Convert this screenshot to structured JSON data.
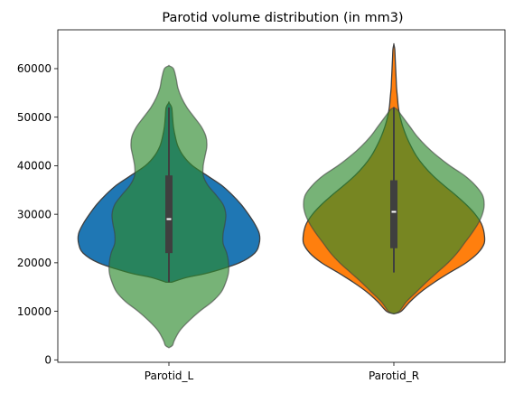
{
  "chart_data": {
    "type": "violin",
    "title": "Parotid volume distribution (in mm3)",
    "xlabel": "",
    "ylabel": "",
    "categories": [
      "Parotid_L",
      "Parotid_R"
    ],
    "ylim": [
      -500,
      68000
    ],
    "yticks": [
      0,
      10000,
      20000,
      30000,
      40000,
      50000,
      60000
    ],
    "ytick_labels": [
      "0",
      "10000",
      "20000",
      "30000",
      "40000",
      "50000",
      "60000"
    ],
    "grid": false,
    "violin_layers": [
      {
        "category": "Parotid_L",
        "layer": "base",
        "color": "#1f77b4",
        "alpha": 1.0,
        "profile": [
          [
            16000,
            0.03
          ],
          [
            17000,
            0.2
          ],
          [
            18000,
            0.45
          ],
          [
            20000,
            0.78
          ],
          [
            22000,
            0.95
          ],
          [
            24000,
            1.0
          ],
          [
            26000,
            1.0
          ],
          [
            28000,
            0.95
          ],
          [
            30000,
            0.88
          ],
          [
            32000,
            0.8
          ],
          [
            34000,
            0.7
          ],
          [
            36000,
            0.58
          ],
          [
            38000,
            0.42
          ],
          [
            40000,
            0.26
          ],
          [
            42000,
            0.16
          ],
          [
            44000,
            0.1
          ],
          [
            46000,
            0.07
          ],
          [
            48000,
            0.05
          ],
          [
            50000,
            0.04
          ],
          [
            52000,
            0.03
          ],
          [
            53000,
            0.0
          ]
        ]
      },
      {
        "category": "Parotid_L",
        "layer": "overlay",
        "color": "#2e8b2e",
        "alpha": 0.65,
        "profile": [
          [
            2500,
            0.0
          ],
          [
            3000,
            0.04
          ],
          [
            4000,
            0.06
          ],
          [
            6000,
            0.12
          ],
          [
            8000,
            0.22
          ],
          [
            10000,
            0.34
          ],
          [
            12000,
            0.48
          ],
          [
            14000,
            0.58
          ],
          [
            16000,
            0.63
          ],
          [
            18000,
            0.66
          ],
          [
            20000,
            0.66
          ],
          [
            22000,
            0.64
          ],
          [
            24000,
            0.6
          ],
          [
            26000,
            0.6
          ],
          [
            28000,
            0.62
          ],
          [
            30000,
            0.63
          ],
          [
            32000,
            0.6
          ],
          [
            34000,
            0.52
          ],
          [
            36000,
            0.43
          ],
          [
            38000,
            0.38
          ],
          [
            40000,
            0.38
          ],
          [
            42000,
            0.4
          ],
          [
            44000,
            0.42
          ],
          [
            46000,
            0.41
          ],
          [
            48000,
            0.36
          ],
          [
            50000,
            0.28
          ],
          [
            52000,
            0.2
          ],
          [
            54000,
            0.14
          ],
          [
            56000,
            0.1
          ],
          [
            58000,
            0.08
          ],
          [
            60000,
            0.05
          ],
          [
            60600,
            0.0
          ]
        ]
      },
      {
        "category": "Parotid_R",
        "layer": "base",
        "color": "#ff7f0e",
        "alpha": 1.0,
        "profile": [
          [
            9500,
            0.0
          ],
          [
            10000,
            0.08
          ],
          [
            12000,
            0.18
          ],
          [
            14000,
            0.3
          ],
          [
            16000,
            0.45
          ],
          [
            18000,
            0.62
          ],
          [
            20000,
            0.8
          ],
          [
            22000,
            0.93
          ],
          [
            24000,
            1.0
          ],
          [
            26000,
            1.0
          ],
          [
            28000,
            0.97
          ],
          [
            30000,
            0.9
          ],
          [
            32000,
            0.8
          ],
          [
            34000,
            0.68
          ],
          [
            36000,
            0.55
          ],
          [
            38000,
            0.43
          ],
          [
            40000,
            0.33
          ],
          [
            42000,
            0.25
          ],
          [
            44000,
            0.19
          ],
          [
            46000,
            0.14
          ],
          [
            48000,
            0.1
          ],
          [
            50000,
            0.07
          ],
          [
            52000,
            0.05
          ],
          [
            54000,
            0.04
          ],
          [
            56000,
            0.03
          ],
          [
            58000,
            0.025
          ],
          [
            60000,
            0.02
          ],
          [
            62000,
            0.015
          ],
          [
            64000,
            0.01
          ],
          [
            65000,
            0.0
          ]
        ]
      },
      {
        "category": "Parotid_R",
        "layer": "overlay",
        "color": "#2e8b2e",
        "alpha": 0.65,
        "profile": [
          [
            9500,
            0.0
          ],
          [
            10000,
            0.06
          ],
          [
            12000,
            0.14
          ],
          [
            14000,
            0.25
          ],
          [
            16000,
            0.36
          ],
          [
            18000,
            0.48
          ],
          [
            20000,
            0.6
          ],
          [
            22000,
            0.7
          ],
          [
            24000,
            0.78
          ],
          [
            26000,
            0.86
          ],
          [
            28000,
            0.93
          ],
          [
            30000,
            0.98
          ],
          [
            32000,
            1.0
          ],
          [
            34000,
            0.98
          ],
          [
            36000,
            0.9
          ],
          [
            38000,
            0.78
          ],
          [
            40000,
            0.62
          ],
          [
            42000,
            0.48
          ],
          [
            44000,
            0.36
          ],
          [
            46000,
            0.26
          ],
          [
            48000,
            0.18
          ],
          [
            50000,
            0.1
          ],
          [
            51500,
            0.04
          ],
          [
            52000,
            0.0
          ]
        ]
      }
    ],
    "box_stats": [
      {
        "category": "Parotid_L",
        "whisker_low": 16000,
        "q1": 22000,
        "median": 29000,
        "q3": 38000,
        "whisker_high": 52000
      },
      {
        "category": "Parotid_R",
        "whisker_low": 18000,
        "q1": 23000,
        "median": 30500,
        "q3": 37000,
        "whisker_high": 52000
      }
    ]
  }
}
